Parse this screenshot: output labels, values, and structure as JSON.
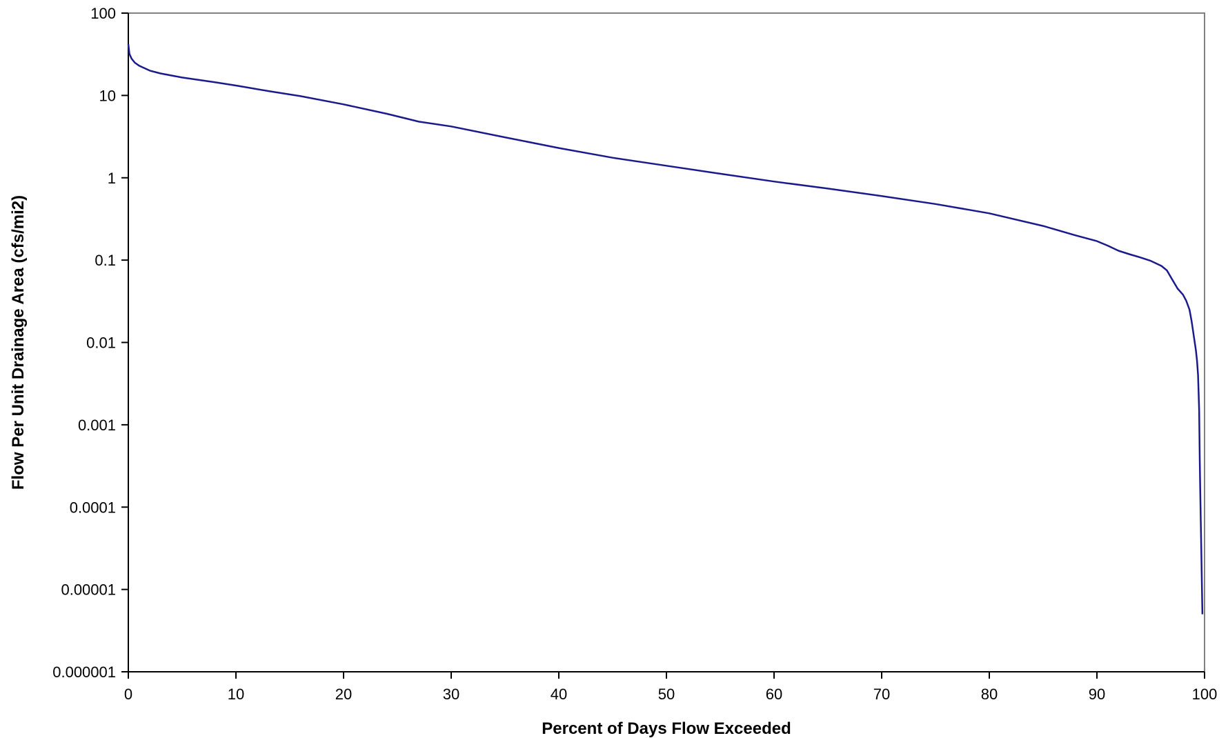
{
  "chart_data": {
    "type": "line",
    "title": "",
    "xlabel": "Percent of Days Flow Exceeded",
    "ylabel": "Flow Per Unit Drainage Area (cfs/mi2)",
    "xlim": [
      0,
      100
    ],
    "ylim": [
      1e-06,
      100
    ],
    "yscale": "log",
    "grid": false,
    "legend": "none",
    "line_color": "#1a1a8c",
    "x_ticks": [
      {
        "value": 0,
        "label": "0"
      },
      {
        "value": 10,
        "label": "10"
      },
      {
        "value": 20,
        "label": "20"
      },
      {
        "value": 30,
        "label": "30"
      },
      {
        "value": 40,
        "label": "40"
      },
      {
        "value": 50,
        "label": "50"
      },
      {
        "value": 60,
        "label": "60"
      },
      {
        "value": 70,
        "label": "70"
      },
      {
        "value": 80,
        "label": "80"
      },
      {
        "value": 90,
        "label": "90"
      },
      {
        "value": 100,
        "label": "100"
      }
    ],
    "y_ticks": [
      {
        "value": 100,
        "label": "100"
      },
      {
        "value": 10,
        "label": "10"
      },
      {
        "value": 1,
        "label": "1"
      },
      {
        "value": 0.1,
        "label": "0.1"
      },
      {
        "value": 0.01,
        "label": "0.01"
      },
      {
        "value": 0.001,
        "label": "0.001"
      },
      {
        "value": 0.0001,
        "label": "0.0001"
      },
      {
        "value": 1e-05,
        "label": "0.00001"
      },
      {
        "value": 1e-06,
        "label": "0.000001"
      }
    ],
    "series": [
      {
        "x": [
          0,
          0.1,
          0.3,
          0.6,
          1,
          2,
          3,
          5,
          8,
          10,
          13,
          16,
          20,
          24,
          27,
          30,
          35,
          40,
          45,
          50,
          55,
          60,
          65,
          70,
          75,
          80,
          85,
          88,
          90,
          91,
          92,
          93,
          94,
          95,
          96,
          96.5,
          97,
          97.5,
          98,
          98.3,
          98.6,
          98.8,
          99,
          99.2,
          99.3,
          99.4,
          99.5,
          99.55,
          99.6,
          99.7,
          99.8
        ],
        "y": [
          42,
          32,
          28,
          25,
          23,
          20,
          18.5,
          16.5,
          14.5,
          13.2,
          11.3,
          9.8,
          7.8,
          6,
          4.8,
          4.2,
          3.1,
          2.3,
          1.75,
          1.4,
          1.12,
          0.9,
          0.74,
          0.6,
          0.48,
          0.37,
          0.26,
          0.2,
          0.17,
          0.15,
          0.13,
          0.118,
          0.108,
          0.098,
          0.085,
          0.075,
          0.058,
          0.045,
          0.038,
          0.032,
          0.025,
          0.018,
          0.012,
          0.008,
          0.006,
          0.004,
          0.0015,
          0.0004,
          0.00015,
          3e-05,
          5e-06
        ]
      }
    ]
  }
}
